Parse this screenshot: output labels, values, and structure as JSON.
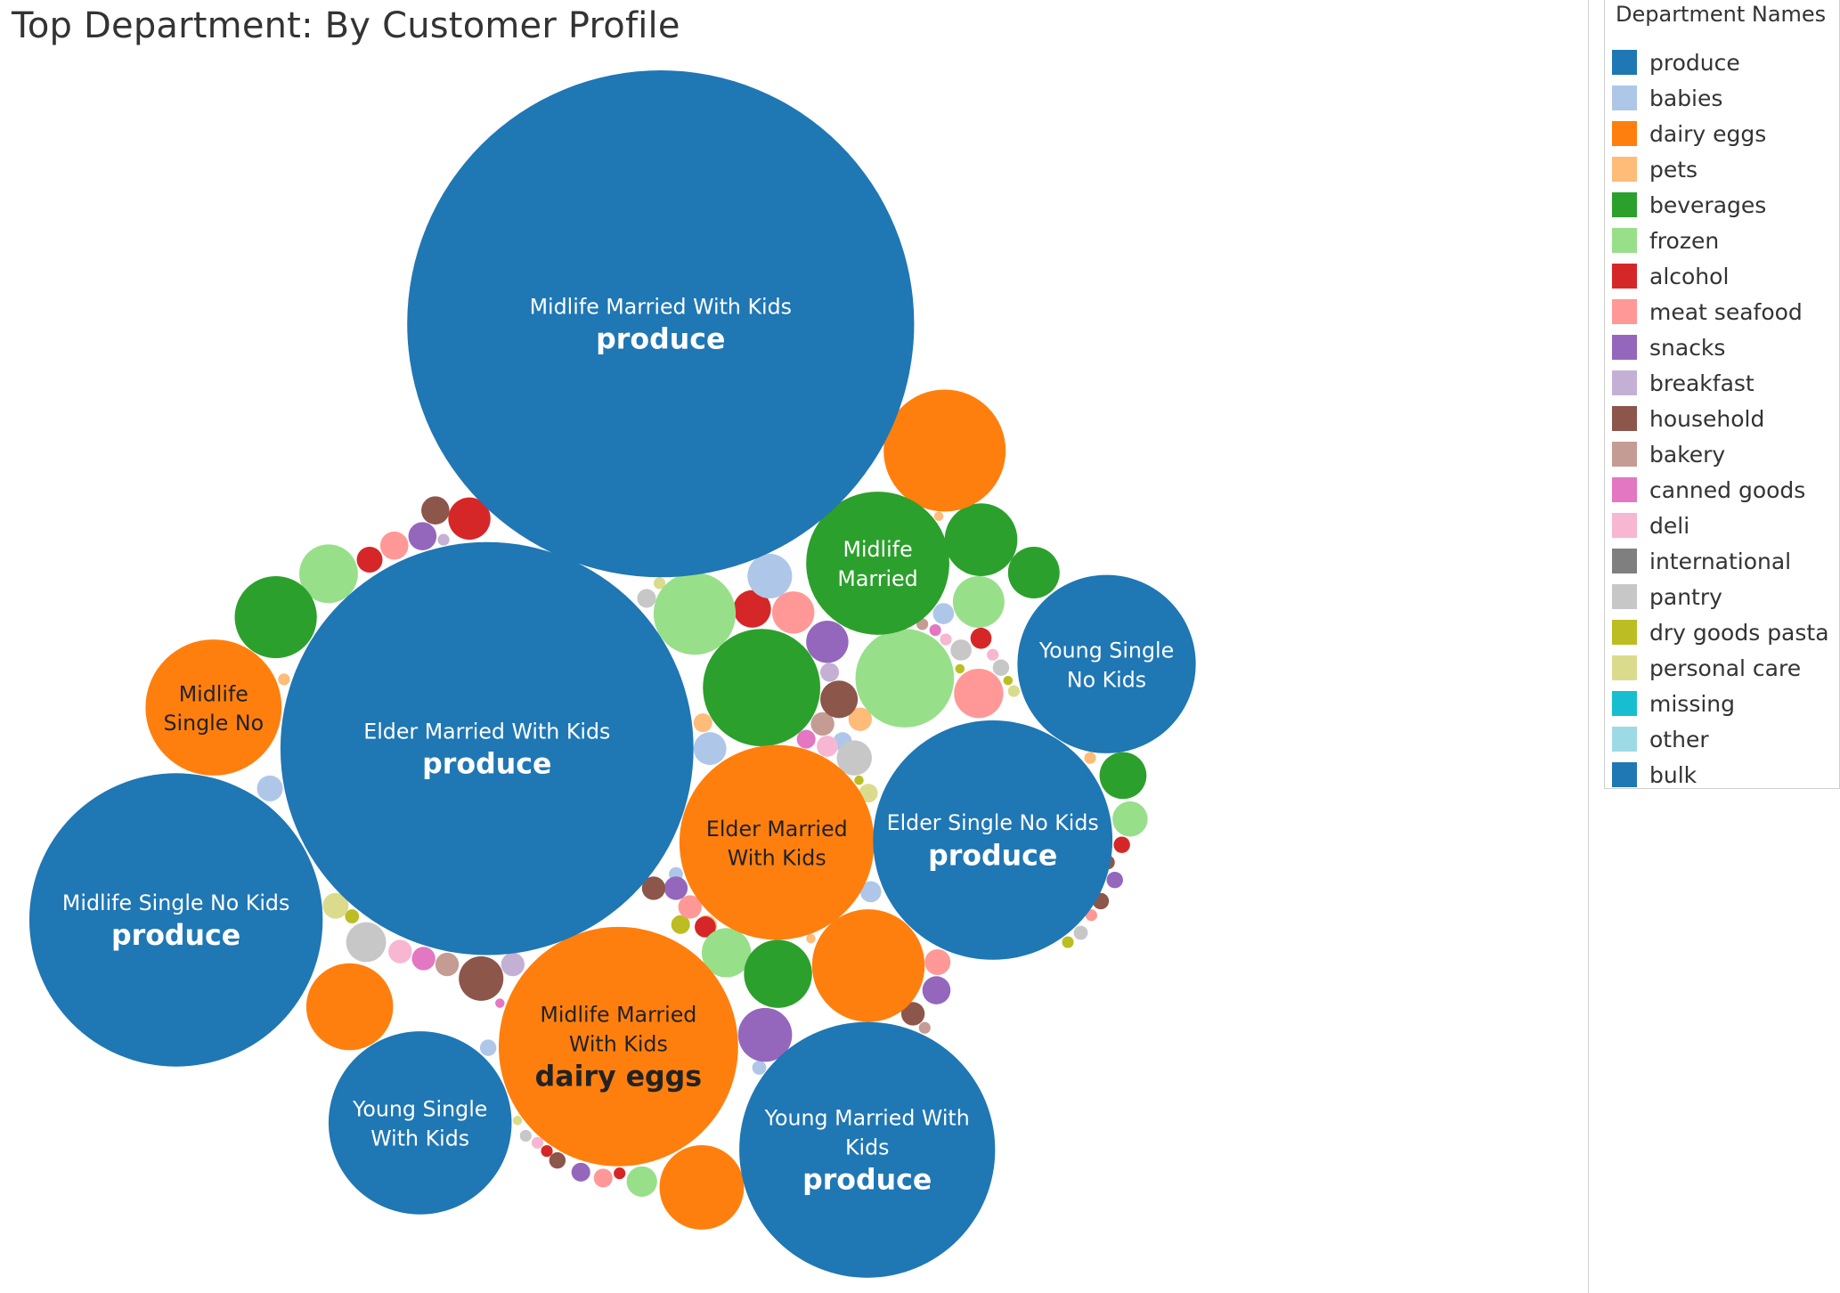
{
  "title": "Top Department: By Customer Profile",
  "legend": {
    "title": "Department Names",
    "items": [
      {
        "label": "produce",
        "color": "#1f77b4"
      },
      {
        "label": "babies",
        "color": "#aec7e8"
      },
      {
        "label": "dairy eggs",
        "color": "#ff7f0e"
      },
      {
        "label": "pets",
        "color": "#ffbb78"
      },
      {
        "label": "beverages",
        "color": "#2ca02c"
      },
      {
        "label": "frozen",
        "color": "#98df8a"
      },
      {
        "label": "alcohol",
        "color": "#d62728"
      },
      {
        "label": "meat seafood",
        "color": "#ff9896"
      },
      {
        "label": "snacks",
        "color": "#9467bd"
      },
      {
        "label": "breakfast",
        "color": "#c5b0d5"
      },
      {
        "label": "household",
        "color": "#8c564b"
      },
      {
        "label": "bakery",
        "color": "#c49c94"
      },
      {
        "label": "canned goods",
        "color": "#e377c2"
      },
      {
        "label": "deli",
        "color": "#f7b6d2"
      },
      {
        "label": "international",
        "color": "#7f7f7f"
      },
      {
        "label": "pantry",
        "color": "#c7c7c7"
      },
      {
        "label": "dry goods pasta",
        "color": "#bcbd22"
      },
      {
        "label": "personal care",
        "color": "#dbdb8d"
      },
      {
        "label": "missing",
        "color": "#17becf"
      },
      {
        "label": "other",
        "color": "#9edae5"
      },
      {
        "label": "bulk",
        "color": "#1f77b4"
      }
    ]
  },
  "chart_data": {
    "type": "bubble",
    "title": "Top Department: By Customer Profile",
    "size_measure": "relative bubble size (estimated from radius)",
    "labeled_bubbles": [
      {
        "profile": "Midlife Married With Kids",
        "department": "produce",
        "size": 283
      },
      {
        "profile": "Elder Married With Kids",
        "department": "produce",
        "size": 232
      },
      {
        "profile": "Midlife Single No Kids",
        "department": "produce",
        "size": 164
      },
      {
        "profile": "Young Married With Kids",
        "department": "produce",
        "size": 143
      },
      {
        "profile": "Elder Single No Kids",
        "department": "produce",
        "size": 134
      },
      {
        "profile": "Midlife Married With Kids",
        "department": "dairy eggs",
        "size": 134
      },
      {
        "profile": "Elder Married With Kids",
        "department": "dairy eggs",
        "size": 109
      },
      {
        "profile": "Young Single With Kids",
        "department": "produce",
        "size": 102
      },
      {
        "profile": "Young Single No Kids",
        "department": "produce",
        "size": 100
      },
      {
        "profile": "Midlife Married",
        "department": "beverages",
        "size": 80
      },
      {
        "profile": "Midlife Single No",
        "department": "dairy eggs",
        "size": 76
      }
    ],
    "label_lines": {
      "midlife_married_kids_produce": [
        "Midlife Married With Kids",
        "produce"
      ],
      "elder_married_kids_produce": [
        "Elder Married With Kids",
        "produce"
      ],
      "midlife_single_nokids_produce": [
        "Midlife Single No Kids",
        "produce"
      ],
      "young_married_kids_produce": [
        "Young Married With",
        "Kids",
        "produce"
      ],
      "elder_single_nokids_produce": [
        "Elder Single No Kids",
        "produce"
      ],
      "midlife_married_kids_dairy": [
        "Midlife Married",
        "With Kids",
        "dairy eggs"
      ],
      "elder_married_kids_dairy": [
        "Elder Married",
        "With Kids"
      ],
      "young_single_kids_produce": [
        "Young Single",
        "With Kids"
      ],
      "young_single_nokids_produce": [
        "Young Single",
        "No Kids"
      ],
      "midlife_married_beverages": [
        "Midlife",
        "Married"
      ],
      "midlife_single_no_dairy": [
        "Midlife",
        "Single No"
      ]
    }
  }
}
